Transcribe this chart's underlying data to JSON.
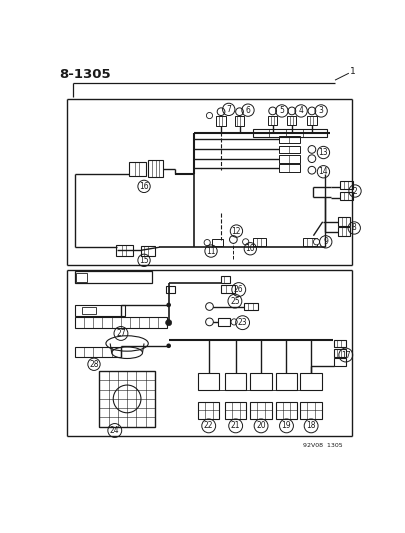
{
  "title_code": "8-1305",
  "diagram_number": "1",
  "copyright": "92V08  1305",
  "bg_color": "#ffffff",
  "line_color": "#1a1a1a",
  "text_color": "#1a1a1a",
  "figure_width": 4.05,
  "figure_height": 5.33,
  "dpi": 100
}
